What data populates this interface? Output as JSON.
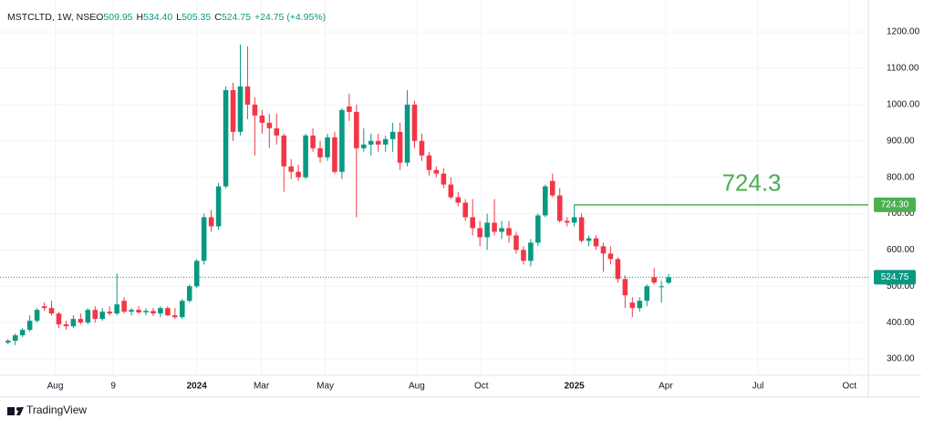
{
  "chart_data": {
    "type": "candlestick",
    "title": "MSTCLTD, 1W, NSE",
    "legend": [
      {
        "key": "O",
        "value": "509.95"
      },
      {
        "key": "H",
        "value": "534.40"
      },
      {
        "key": "L",
        "value": "505.35"
      },
      {
        "key": "C",
        "value": "524.75"
      }
    ],
    "change": "+24.75 (+4.95%)",
    "up_color": "#089981",
    "down_color": "#f23645",
    "open": [
      345,
      350,
      365,
      380,
      405,
      445,
      440,
      425,
      395,
      390,
      410,
      400,
      435,
      410,
      430,
      425,
      460,
      430,
      435,
      428,
      432,
      425,
      440,
      420,
      415,
      460,
      500,
      570,
      690,
      665,
      775,
      1040,
      925,
      1050,
      1000,
      970,
      950,
      935,
      915,
      830,
      815,
      800,
      915,
      880,
      855,
      910,
      815,
      995,
      980,
      880,
      890,
      900,
      890,
      905,
      925,
      840,
      1000,
      900,
      860,
      820,
      810,
      780,
      745,
      730,
      690,
      660,
      635,
      675,
      650,
      660,
      640,
      600,
      570,
      620,
      695,
      790,
      750,
      680,
      675,
      690,
      625,
      632,
      610,
      590,
      575,
      520,
      455,
      440,
      460,
      525,
      500,
      509.95
    ],
    "high": [
      355,
      370,
      385,
      420,
      440,
      455,
      460,
      430,
      405,
      420,
      425,
      440,
      445,
      440,
      445,
      535,
      470,
      440,
      445,
      440,
      440,
      445,
      445,
      440,
      465,
      505,
      575,
      700,
      710,
      785,
      1050,
      1060,
      1165,
      1160,
      1020,
      985,
      975,
      975,
      920,
      850,
      835,
      920,
      935,
      900,
      920,
      925,
      990,
      1030,
      1000,
      935,
      920,
      920,
      915,
      950,
      950,
      1040,
      1010,
      920,
      870,
      830,
      825,
      800,
      760,
      740,
      740,
      680,
      700,
      740,
      680,
      680,
      650,
      610,
      630,
      700,
      780,
      810,
      770,
      690,
      725,
      700,
      640,
      640,
      620,
      610,
      580,
      530,
      470,
      470,
      505,
      550,
      515,
      534.4
    ],
    "low": [
      340,
      338,
      360,
      375,
      400,
      432,
      420,
      385,
      380,
      385,
      395,
      395,
      400,
      405,
      420,
      420,
      425,
      420,
      425,
      420,
      418,
      415,
      418,
      410,
      410,
      455,
      495,
      560,
      650,
      655,
      770,
      900,
      915,
      960,
      860,
      920,
      880,
      890,
      760,
      795,
      790,
      795,
      870,
      840,
      845,
      810,
      795,
      955,
      690,
      870,
      860,
      870,
      870,
      870,
      820,
      830,
      880,
      845,
      805,
      800,
      770,
      740,
      720,
      680,
      640,
      610,
      600,
      640,
      630,
      620,
      590,
      560,
      555,
      610,
      690,
      745,
      675,
      665,
      665,
      620,
      610,
      600,
      540,
      560,
      510,
      440,
      415,
      430,
      445,
      505,
      455,
      505.35
    ],
    "close": [
      350,
      365,
      380,
      405,
      435,
      440,
      425,
      395,
      390,
      410,
      400,
      435,
      410,
      430,
      425,
      450,
      430,
      435,
      428,
      432,
      425,
      440,
      420,
      415,
      460,
      500,
      570,
      690,
      665,
      775,
      1040,
      925,
      1050,
      1000,
      970,
      950,
      935,
      915,
      830,
      815,
      800,
      915,
      880,
      855,
      910,
      815,
      985,
      980,
      880,
      890,
      900,
      890,
      905,
      925,
      840,
      1000,
      900,
      860,
      820,
      810,
      780,
      745,
      730,
      690,
      660,
      635,
      675,
      650,
      660,
      640,
      600,
      570,
      620,
      695,
      775,
      750,
      680,
      675,
      690,
      625,
      632,
      610,
      590,
      575,
      520,
      475,
      440,
      460,
      500,
      510,
      500,
      524.75
    ],
    "xlim": [
      -1.1,
      118.5
    ],
    "xticks": [
      {
        "value": 6.5,
        "label": "Aug"
      },
      {
        "value": 14.5,
        "label": "9"
      },
      {
        "value": 26,
        "label": "2024"
      },
      {
        "value": 34.9,
        "label": "Mar"
      },
      {
        "value": 43.7,
        "label": "May"
      },
      {
        "value": 56.3,
        "label": "Aug"
      },
      {
        "value": 65.2,
        "label": "Oct"
      },
      {
        "value": 78,
        "label": "2025"
      },
      {
        "value": 90.6,
        "label": "Apr"
      },
      {
        "value": 103.3,
        "label": "Jul"
      },
      {
        "value": 115.9,
        "label": "Oct"
      }
    ],
    "ylim": [
      255,
      1288
    ],
    "yticks": [
      {
        "value": 300,
        "label": "300.00"
      },
      {
        "value": 400,
        "label": "400.00"
      },
      {
        "value": 500,
        "label": "500.00"
      },
      {
        "value": 600,
        "label": "600.00"
      },
      {
        "value": 700,
        "label": "700.00"
      },
      {
        "value": 800,
        "label": "800.00"
      },
      {
        "value": 900,
        "label": "900.00"
      },
      {
        "value": 1000,
        "label": "1000.00"
      },
      {
        "value": 1100,
        "label": "1100.00"
      },
      {
        "value": 1200,
        "label": "1200.00"
      }
    ],
    "hline": {
      "value": 724.3,
      "label": "724.30",
      "start": 78,
      "color": "#4caf50"
    },
    "footer": "TradingView"
  }
}
